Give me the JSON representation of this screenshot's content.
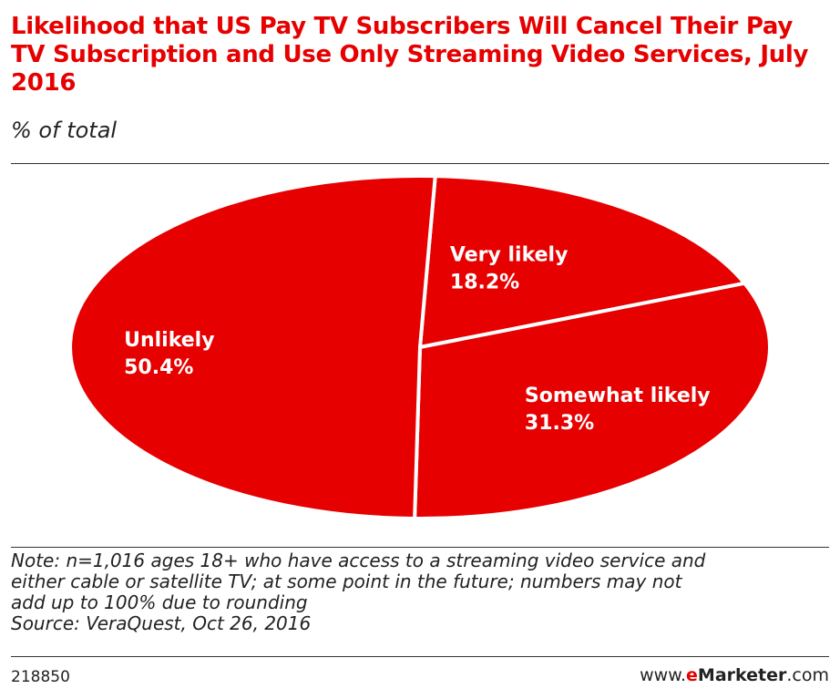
{
  "header": {
    "title": "Likelihood that US Pay TV Subscribers Will Cancel Their Pay TV Subscription and Use Only Streaming Video Services, July 2016",
    "subtitle": "% of total"
  },
  "chart_data": {
    "type": "pie",
    "title": "Likelihood that US Pay TV Subscribers Will Cancel Their Pay TV Subscription and Use Only Streaming Video Services, July 2016",
    "subtitle": "% of total",
    "unit": "%",
    "slices": [
      {
        "label": "Very likely",
        "value": 18.2,
        "display": "18.2%"
      },
      {
        "label": "Somewhat likely",
        "value": 31.3,
        "display": "31.3%"
      },
      {
        "label": "Unlikely",
        "value": 50.4,
        "display": "50.4%"
      }
    ],
    "colors": {
      "slice": "#e60000",
      "separator": "#ffffff",
      "label": "#ffffff"
    },
    "legend": "none"
  },
  "footer": {
    "note_lines": [
      "Note: n=1,016 ages 18+ who have access to a streaming video service and",
      "either cable or satellite TV; at some point in the future; numbers may not",
      "add up to 100% due to rounding"
    ],
    "source": "Source: VeraQuest, Oct 26, 2016",
    "chart_id": "218850",
    "brand": {
      "prefix": "www.",
      "e": "e",
      "name": "Marketer",
      "suffix": ".com"
    }
  },
  "colors": {
    "accent": "#e60000",
    "text": "#222222",
    "rule": "#333333"
  }
}
